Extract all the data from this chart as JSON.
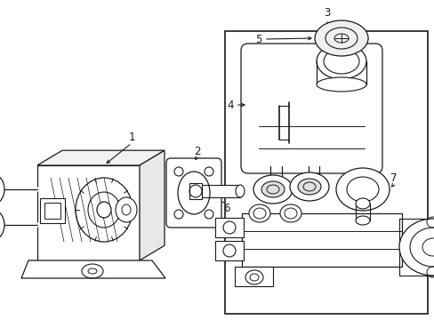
{
  "bg_color": "#ffffff",
  "line_color": "#1a1a1a",
  "fig_width": 4.89,
  "fig_height": 3.6,
  "dpi": 100,
  "label_fontsize": 8.5
}
